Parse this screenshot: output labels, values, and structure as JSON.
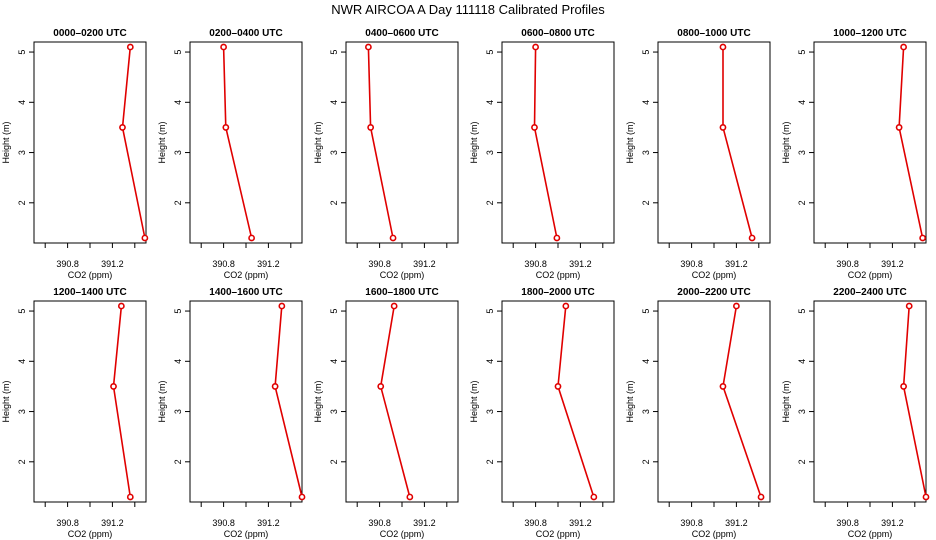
{
  "figure": {
    "title": "NWR AIRCOA A  Day 111118  Calibrated Profiles"
  },
  "chart_data": [
    {
      "type": "line",
      "title": "0000–0200 UTC",
      "xlabel": "CO2 (ppm)",
      "ylabel": "Height (m)",
      "x_ticks": [
        "390.8",
        "391.2"
      ],
      "y_ticks": [
        "2",
        "3",
        "4",
        "5"
      ],
      "xlim": [
        390.5,
        391.5
      ],
      "ylim": [
        1.2,
        5.2
      ],
      "series": [
        {
          "points": [
            {
              "x": 391.36,
              "y": 5.1
            },
            {
              "x": 391.29,
              "y": 3.5
            },
            {
              "x": 391.49,
              "y": 1.3
            }
          ]
        }
      ],
      "color": "#e00000"
    },
    {
      "type": "line",
      "title": "0200–0400 UTC",
      "xlabel": "CO2 (ppm)",
      "ylabel": "Height (m)",
      "x_ticks": [
        "390.8",
        "391.2"
      ],
      "y_ticks": [
        "2",
        "3",
        "4",
        "5"
      ],
      "xlim": [
        390.5,
        391.5
      ],
      "ylim": [
        1.2,
        5.2
      ],
      "series": [
        {
          "points": [
            {
              "x": 390.8,
              "y": 5.1
            },
            {
              "x": 390.82,
              "y": 3.5
            },
            {
              "x": 391.05,
              "y": 1.3
            }
          ]
        }
      ],
      "color": "#e00000"
    },
    {
      "type": "line",
      "title": "0400–0600 UTC",
      "xlabel": "CO2 (ppm)",
      "ylabel": "Height (m)",
      "x_ticks": [
        "390.8",
        "391.2"
      ],
      "y_ticks": [
        "2",
        "3",
        "4",
        "5"
      ],
      "xlim": [
        390.5,
        391.5
      ],
      "ylim": [
        1.2,
        5.2
      ],
      "series": [
        {
          "points": [
            {
              "x": 390.7,
              "y": 5.1
            },
            {
              "x": 390.72,
              "y": 3.5
            },
            {
              "x": 390.92,
              "y": 1.3
            }
          ]
        }
      ],
      "color": "#e00000"
    },
    {
      "type": "line",
      "title": "0600–0800 UTC",
      "xlabel": "CO2 (ppm)",
      "ylabel": "Height (m)",
      "x_ticks": [
        "390.8",
        "391.2"
      ],
      "y_ticks": [
        "2",
        "3",
        "4",
        "5"
      ],
      "xlim": [
        390.5,
        391.5
      ],
      "ylim": [
        1.2,
        5.2
      ],
      "series": [
        {
          "points": [
            {
              "x": 390.8,
              "y": 5.1
            },
            {
              "x": 390.79,
              "y": 3.5
            },
            {
              "x": 390.99,
              "y": 1.3
            }
          ]
        }
      ],
      "color": "#e00000"
    },
    {
      "type": "line",
      "title": "0800–1000 UTC",
      "xlabel": "CO2 (ppm)",
      "ylabel": "Height (m)",
      "x_ticks": [
        "390.8",
        "391.2"
      ],
      "y_ticks": [
        "2",
        "3",
        "4",
        "5"
      ],
      "xlim": [
        390.5,
        391.5
      ],
      "ylim": [
        1.2,
        5.2
      ],
      "series": [
        {
          "points": [
            {
              "x": 391.08,
              "y": 5.1
            },
            {
              "x": 391.08,
              "y": 3.5
            },
            {
              "x": 391.34,
              "y": 1.3
            }
          ]
        }
      ],
      "color": "#e00000"
    },
    {
      "type": "line",
      "title": "1000–1200 UTC",
      "xlabel": "CO2 (ppm)",
      "ylabel": "Height (m)",
      "x_ticks": [
        "390.8",
        "391.2"
      ],
      "y_ticks": [
        "2",
        "3",
        "4",
        "5"
      ],
      "xlim": [
        390.5,
        391.5
      ],
      "ylim": [
        1.2,
        5.2
      ],
      "series": [
        {
          "points": [
            {
              "x": 391.3,
              "y": 5.1
            },
            {
              "x": 391.26,
              "y": 3.5
            },
            {
              "x": 391.47,
              "y": 1.3
            }
          ]
        }
      ],
      "color": "#e00000"
    },
    {
      "type": "line",
      "title": "1200–1400 UTC",
      "xlabel": "CO2 (ppm)",
      "ylabel": "Height (m)",
      "x_ticks": [
        "390.8",
        "391.2"
      ],
      "y_ticks": [
        "2",
        "3",
        "4",
        "5"
      ],
      "xlim": [
        390.5,
        391.5
      ],
      "ylim": [
        1.2,
        5.2
      ],
      "series": [
        {
          "points": [
            {
              "x": 391.28,
              "y": 5.1
            },
            {
              "x": 391.21,
              "y": 3.5
            },
            {
              "x": 391.36,
              "y": 1.3
            }
          ]
        }
      ],
      "color": "#e00000"
    },
    {
      "type": "line",
      "title": "1400–1600 UTC",
      "xlabel": "CO2 (ppm)",
      "ylabel": "Height (m)",
      "x_ticks": [
        "390.8",
        "391.2"
      ],
      "y_ticks": [
        "2",
        "3",
        "4",
        "5"
      ],
      "xlim": [
        390.5,
        391.5
      ],
      "ylim": [
        1.2,
        5.2
      ],
      "series": [
        {
          "points": [
            {
              "x": 391.32,
              "y": 5.1
            },
            {
              "x": 391.26,
              "y": 3.5
            },
            {
              "x": 391.5,
              "y": 1.3
            }
          ]
        }
      ],
      "color": "#e00000"
    },
    {
      "type": "line",
      "title": "1600–1800 UTC",
      "xlabel": "CO2 (ppm)",
      "ylabel": "Height (m)",
      "x_ticks": [
        "390.8",
        "391.2"
      ],
      "y_ticks": [
        "2",
        "3",
        "4",
        "5"
      ],
      "xlim": [
        390.5,
        391.5
      ],
      "ylim": [
        1.2,
        5.2
      ],
      "series": [
        {
          "points": [
            {
              "x": 390.93,
              "y": 5.1
            },
            {
              "x": 390.81,
              "y": 3.5
            },
            {
              "x": 391.07,
              "y": 1.3
            }
          ]
        }
      ],
      "color": "#e00000"
    },
    {
      "type": "line",
      "title": "1800–2000 UTC",
      "xlabel": "CO2 (ppm)",
      "ylabel": "Height (m)",
      "x_ticks": [
        "390.8",
        "391.2"
      ],
      "y_ticks": [
        "2",
        "3",
        "4",
        "5"
      ],
      "xlim": [
        390.5,
        391.5
      ],
      "ylim": [
        1.2,
        5.2
      ],
      "series": [
        {
          "points": [
            {
              "x": 391.07,
              "y": 5.1
            },
            {
              "x": 391.0,
              "y": 3.5
            },
            {
              "x": 391.32,
              "y": 1.3
            }
          ]
        }
      ],
      "color": "#e00000"
    },
    {
      "type": "line",
      "title": "2000–2200 UTC",
      "xlabel": "CO2 (ppm)",
      "ylabel": "Height (m)",
      "x_ticks": [
        "390.8",
        "391.2"
      ],
      "y_ticks": [
        "2",
        "3",
        "4",
        "5"
      ],
      "xlim": [
        390.5,
        391.5
      ],
      "ylim": [
        1.2,
        5.2
      ],
      "series": [
        {
          "points": [
            {
              "x": 391.2,
              "y": 5.1
            },
            {
              "x": 391.08,
              "y": 3.5
            },
            {
              "x": 391.42,
              "y": 1.3
            }
          ]
        }
      ],
      "color": "#e00000"
    },
    {
      "type": "line",
      "title": "2200–2400 UTC",
      "xlabel": "CO2 (ppm)",
      "ylabel": "Height (m)",
      "x_ticks": [
        "390.8",
        "391.2"
      ],
      "y_ticks": [
        "2",
        "3",
        "4",
        "5"
      ],
      "xlim": [
        390.5,
        391.5
      ],
      "ylim": [
        1.2,
        5.2
      ],
      "series": [
        {
          "points": [
            {
              "x": 391.35,
              "y": 5.1
            },
            {
              "x": 391.3,
              "y": 3.5
            },
            {
              "x": 391.5,
              "y": 1.3
            }
          ]
        }
      ],
      "color": "#e00000"
    }
  ]
}
